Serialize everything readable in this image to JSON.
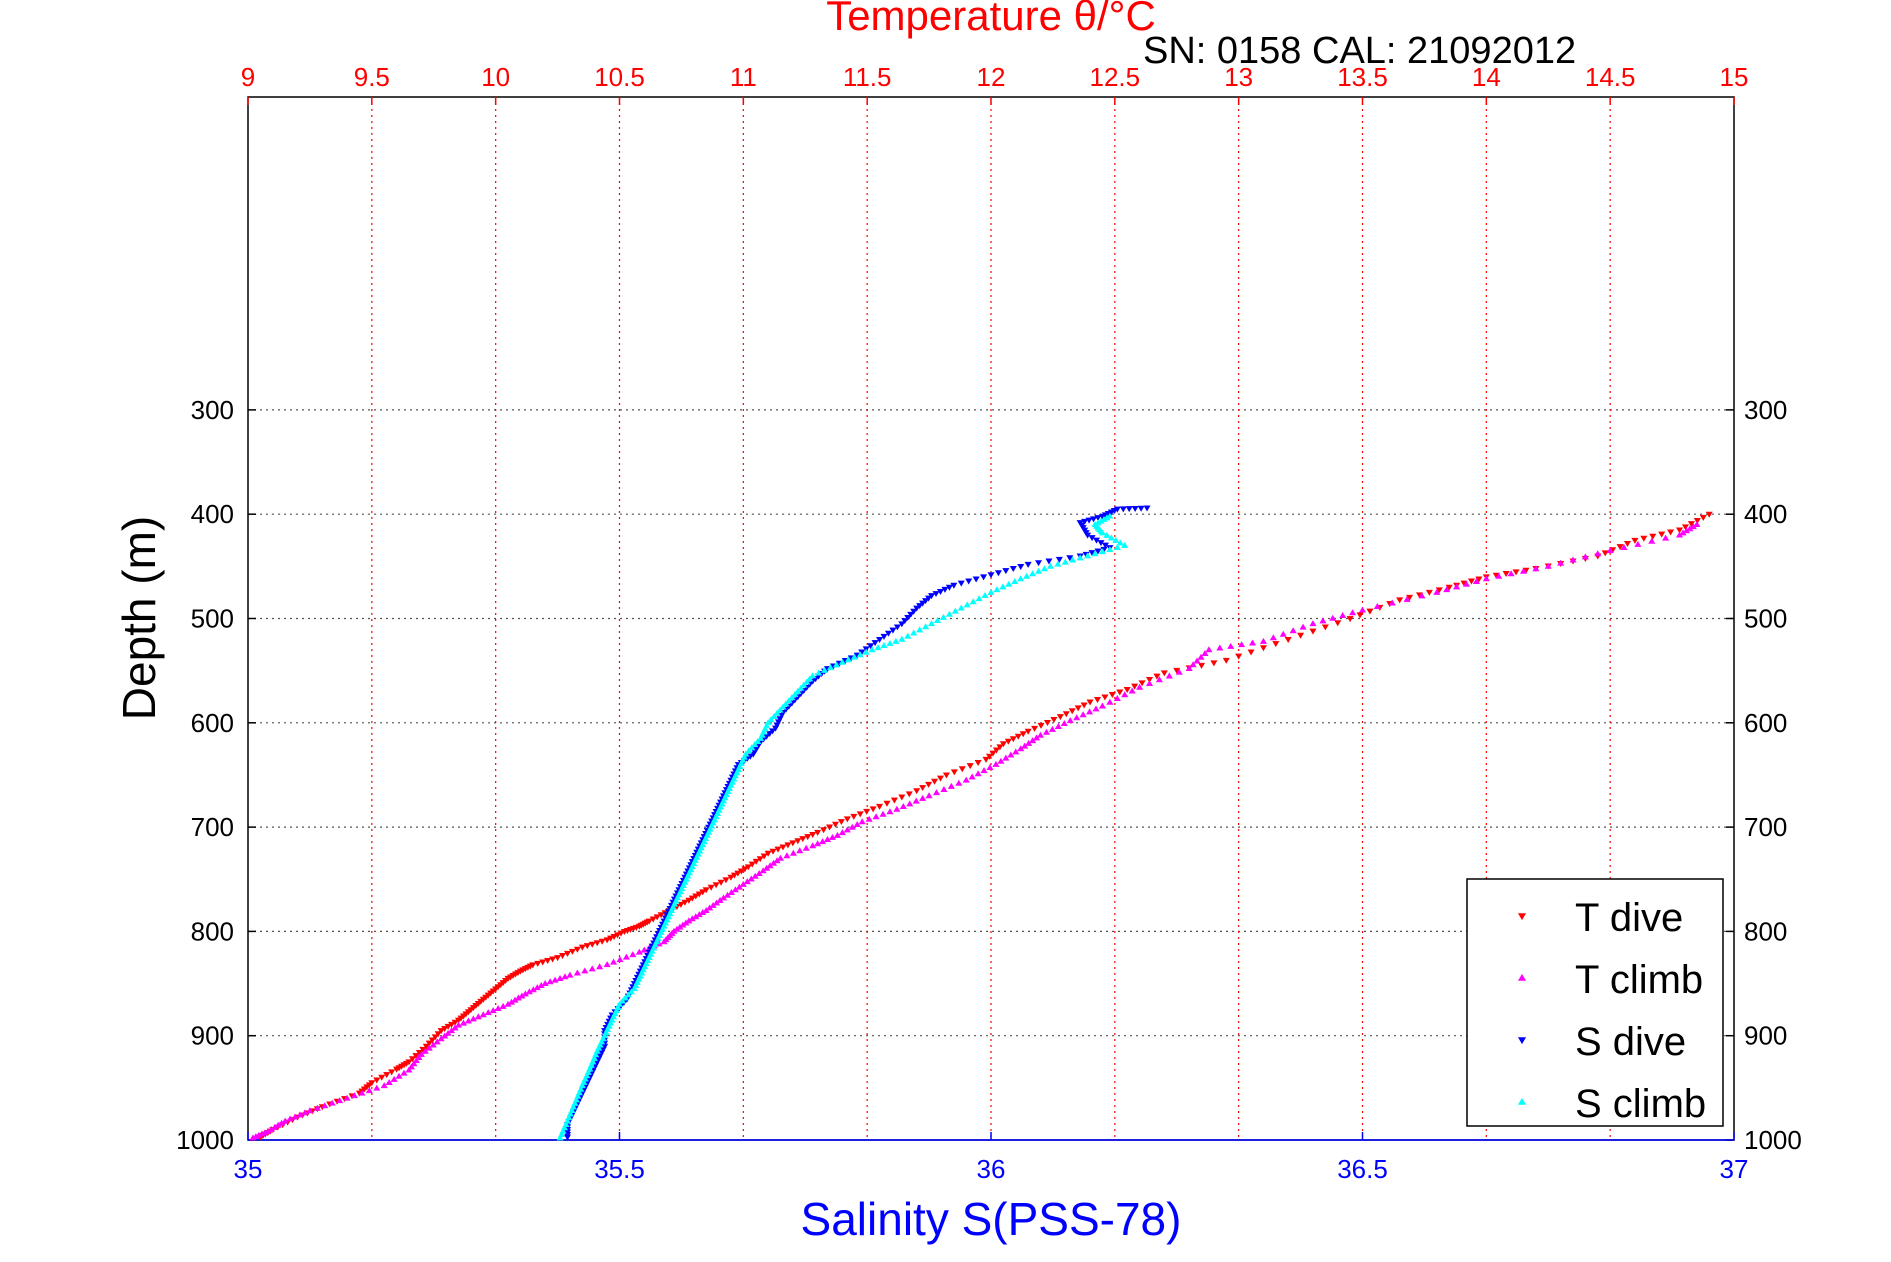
{
  "chart_data": {
    "type": "scatter",
    "title": "Temperature θ/°C",
    "annotation": "SN: 0158  CAL: 21092012",
    "xlabel": "Salinity S(PSS-78)",
    "ylabel": "Depth (m)",
    "ylim": [
      1000,
      0
    ],
    "y_ticks": [
      300,
      400,
      500,
      600,
      700,
      800,
      900,
      1000
    ],
    "x_bottom": {
      "label": "Salinity S(PSS-78)",
      "range": [
        35,
        37
      ],
      "ticks": [
        "35",
        "35.5",
        "36",
        "36.5",
        "37"
      ],
      "color": "#0000ff"
    },
    "x_top": {
      "label": "Temperature θ/°C",
      "range": [
        9,
        15
      ],
      "ticks": [
        "9",
        "9.5",
        "10",
        "10.5",
        "11",
        "11.5",
        "12",
        "12.5",
        "13",
        "13.5",
        "14",
        "14.5",
        "15"
      ],
      "color": "#ff0000"
    },
    "grid": true,
    "legend_position": "bottom-right",
    "series": [
      {
        "name": "T dive",
        "axis": "top",
        "color": "#ff0000",
        "marker": "triangle-down",
        "points": [
          [
            9.05,
            997
          ],
          [
            9.1,
            990
          ],
          [
            9.2,
            978
          ],
          [
            9.3,
            968
          ],
          [
            9.45,
            955
          ],
          [
            9.5,
            945
          ],
          [
            9.6,
            932
          ],
          [
            9.65,
            925
          ],
          [
            9.72,
            910
          ],
          [
            9.78,
            895
          ],
          [
            9.85,
            885
          ],
          [
            9.9,
            875
          ],
          [
            9.95,
            865
          ],
          [
            10.0,
            855
          ],
          [
            10.05,
            845
          ],
          [
            10.1,
            838
          ],
          [
            10.15,
            832
          ],
          [
            10.25,
            825
          ],
          [
            10.35,
            815
          ],
          [
            10.45,
            808
          ],
          [
            10.52,
            800
          ],
          [
            10.58,
            795
          ],
          [
            10.62,
            790
          ],
          [
            10.7,
            780
          ],
          [
            10.78,
            770
          ],
          [
            10.85,
            760
          ],
          [
            10.95,
            748
          ],
          [
            11.02,
            738
          ],
          [
            11.1,
            725
          ],
          [
            11.2,
            715
          ],
          [
            11.3,
            705
          ],
          [
            11.42,
            692
          ],
          [
            11.55,
            680
          ],
          [
            11.7,
            665
          ],
          [
            11.82,
            650
          ],
          [
            11.98,
            635
          ],
          [
            12.05,
            620
          ],
          [
            12.15,
            608
          ],
          [
            12.28,
            594
          ],
          [
            12.4,
            580
          ],
          [
            12.55,
            568
          ],
          [
            12.7,
            552
          ],
          [
            12.95,
            540
          ],
          [
            13.2,
            520
          ],
          [
            13.45,
            500
          ],
          [
            13.65,
            482
          ],
          [
            13.85,
            470
          ],
          [
            14.0,
            460
          ],
          [
            14.2,
            452
          ],
          [
            14.45,
            440
          ],
          [
            14.6,
            425
          ],
          [
            14.78,
            415
          ],
          [
            14.9,
            400
          ]
        ]
      },
      {
        "name": "T climb",
        "axis": "top",
        "color": "#ff00ff",
        "marker": "triangle-up",
        "points": [
          [
            9.02,
            998
          ],
          [
            9.08,
            992
          ],
          [
            9.15,
            982
          ],
          [
            9.25,
            972
          ],
          [
            9.4,
            960
          ],
          [
            9.55,
            948
          ],
          [
            9.65,
            933
          ],
          [
            9.7,
            918
          ],
          [
            9.78,
            903
          ],
          [
            9.85,
            890
          ],
          [
            9.95,
            880
          ],
          [
            10.05,
            870
          ],
          [
            10.12,
            860
          ],
          [
            10.2,
            850
          ],
          [
            10.3,
            842
          ],
          [
            10.45,
            832
          ],
          [
            10.58,
            820
          ],
          [
            10.68,
            810
          ],
          [
            10.72,
            800
          ],
          [
            10.78,
            790
          ],
          [
            10.85,
            780
          ],
          [
            10.92,
            768
          ],
          [
            11.0,
            755
          ],
          [
            11.08,
            742
          ],
          [
            11.15,
            730
          ],
          [
            11.28,
            718
          ],
          [
            11.38,
            708
          ],
          [
            11.48,
            695
          ],
          [
            11.62,
            683
          ],
          [
            11.75,
            670
          ],
          [
            11.9,
            655
          ],
          [
            12.02,
            640
          ],
          [
            12.12,
            625
          ],
          [
            12.2,
            612
          ],
          [
            12.32,
            598
          ],
          [
            12.45,
            584
          ],
          [
            12.6,
            566
          ],
          [
            12.8,
            548
          ],
          [
            12.88,
            530
          ],
          [
            13.1,
            522
          ],
          [
            13.3,
            505
          ],
          [
            13.5,
            492
          ],
          [
            13.8,
            475
          ],
          [
            14.0,
            462
          ],
          [
            14.25,
            450
          ],
          [
            14.5,
            435
          ],
          [
            14.78,
            420
          ],
          [
            14.85,
            410
          ]
        ]
      },
      {
        "name": "S dive",
        "axis": "bottom",
        "color": "#0000ff",
        "marker": "triangle-down",
        "points": [
          [
            35.43,
            997
          ],
          [
            35.43,
            985
          ],
          [
            35.44,
            970
          ],
          [
            35.45,
            955
          ],
          [
            35.46,
            940
          ],
          [
            35.47,
            925
          ],
          [
            35.48,
            910
          ],
          [
            35.48,
            895
          ],
          [
            35.49,
            880
          ],
          [
            35.51,
            865
          ],
          [
            35.52,
            850
          ],
          [
            35.53,
            835
          ],
          [
            35.54,
            820
          ],
          [
            35.55,
            805
          ],
          [
            35.56,
            790
          ],
          [
            35.57,
            775
          ],
          [
            35.58,
            760
          ],
          [
            35.59,
            745
          ],
          [
            35.6,
            730
          ],
          [
            35.61,
            715
          ],
          [
            35.62,
            700
          ],
          [
            35.63,
            685
          ],
          [
            35.64,
            670
          ],
          [
            35.65,
            655
          ],
          [
            35.66,
            640
          ],
          [
            35.68,
            630
          ],
          [
            35.69,
            618
          ],
          [
            35.71,
            605
          ],
          [
            35.72,
            590
          ],
          [
            35.74,
            575
          ],
          [
            35.76,
            560
          ],
          [
            35.78,
            548
          ],
          [
            35.82,
            535
          ],
          [
            35.85,
            520
          ],
          [
            35.88,
            505
          ],
          [
            35.9,
            490
          ],
          [
            35.92,
            478
          ],
          [
            35.95,
            468
          ],
          [
            36.0,
            458
          ],
          [
            36.05,
            448
          ],
          [
            36.12,
            440
          ],
          [
            36.16,
            432
          ],
          [
            36.13,
            420
          ],
          [
            36.12,
            408
          ],
          [
            36.15,
            402
          ],
          [
            36.17,
            395
          ],
          [
            36.21,
            394
          ]
        ]
      },
      {
        "name": "S climb",
        "axis": "bottom",
        "color": "#00ffff",
        "marker": "triangle-up",
        "points": [
          [
            35.42,
            998
          ],
          [
            35.43,
            982
          ],
          [
            35.44,
            965
          ],
          [
            35.45,
            948
          ],
          [
            35.46,
            932
          ],
          [
            35.47,
            915
          ],
          [
            35.48,
            900
          ],
          [
            35.49,
            885
          ],
          [
            35.5,
            870
          ],
          [
            35.52,
            855
          ],
          [
            35.53,
            840
          ],
          [
            35.54,
            825
          ],
          [
            35.55,
            810
          ],
          [
            35.56,
            795
          ],
          [
            35.57,
            780
          ],
          [
            35.58,
            765
          ],
          [
            35.59,
            750
          ],
          [
            35.6,
            735
          ],
          [
            35.61,
            720
          ],
          [
            35.62,
            705
          ],
          [
            35.63,
            690
          ],
          [
            35.64,
            675
          ],
          [
            35.65,
            660
          ],
          [
            35.66,
            645
          ],
          [
            35.67,
            630
          ],
          [
            35.69,
            615
          ],
          [
            35.7,
            600
          ],
          [
            35.72,
            585
          ],
          [
            35.74,
            570
          ],
          [
            35.76,
            555
          ],
          [
            35.8,
            542
          ],
          [
            35.84,
            530
          ],
          [
            35.88,
            520
          ],
          [
            35.92,
            505
          ],
          [
            35.96,
            490
          ],
          [
            36.0,
            475
          ],
          [
            36.04,
            462
          ],
          [
            36.08,
            450
          ],
          [
            36.13,
            440
          ],
          [
            36.18,
            430
          ],
          [
            36.15,
            418
          ],
          [
            36.14,
            410
          ],
          [
            36.16,
            402
          ]
        ]
      }
    ]
  }
}
